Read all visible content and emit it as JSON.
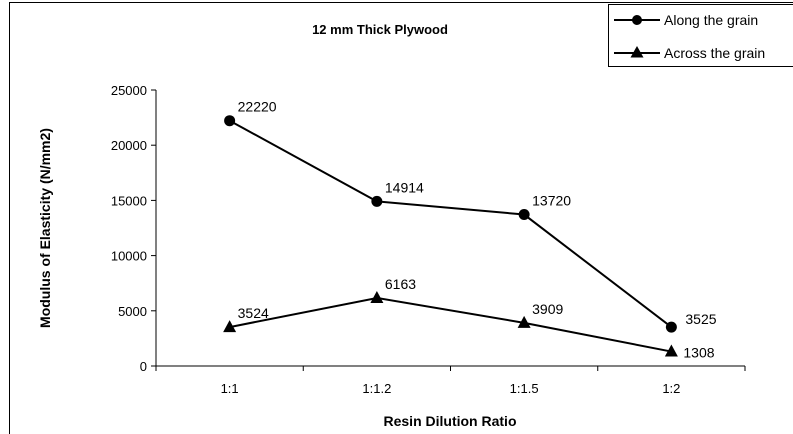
{
  "chart_data": {
    "type": "line",
    "title": "12 mm Thick Plywood",
    "xlabel": "Resin Dilution Ratio",
    "ylabel": "Modulus of Elasticity (N/mm2)",
    "categories": [
      "1:1",
      "1:1.2",
      "1:1.5",
      "1:2"
    ],
    "ylim": [
      0,
      25000
    ],
    "yticks": [
      0,
      5000,
      10000,
      15000,
      20000,
      25000
    ],
    "grid": false,
    "legend_position": "top-right",
    "series": [
      {
        "name": "Along the grain",
        "marker": "circle",
        "values": [
          22220,
          14914,
          13720,
          3525
        ],
        "labels": [
          "22220",
          "14914",
          "13720",
          "3525"
        ]
      },
      {
        "name": "Across the grain",
        "marker": "triangle",
        "values": [
          3524,
          6163,
          3909,
          1308
        ],
        "labels": [
          "3524",
          "6163",
          "3909",
          "1308"
        ]
      }
    ],
    "colors": {
      "line": "#000000",
      "background": "#ffffff"
    }
  }
}
